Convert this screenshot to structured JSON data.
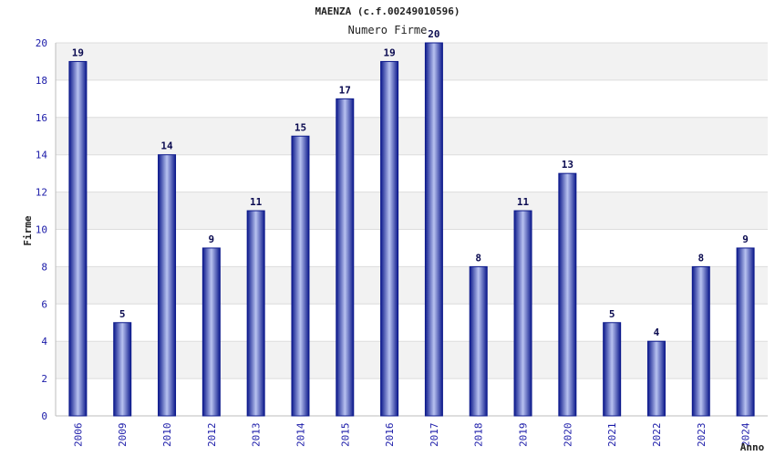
{
  "chart_data": {
    "type": "bar",
    "title": "MAENZA (c.f.00249010596)",
    "subtitle": "Numero Firme",
    "xlabel": "Anno",
    "ylabel": "Firme",
    "categories": [
      "2006",
      "2009",
      "2010",
      "2012",
      "2013",
      "2014",
      "2015",
      "2016",
      "2017",
      "2018",
      "2019",
      "2020",
      "2021",
      "2022",
      "2023",
      "2024"
    ],
    "values": [
      19,
      5,
      14,
      9,
      11,
      15,
      17,
      19,
      20,
      8,
      11,
      13,
      5,
      4,
      8,
      9
    ],
    "ylim": [
      0,
      20
    ],
    "yticks": [
      "0",
      "2",
      "4",
      "6",
      "8",
      "10",
      "12",
      "14",
      "16",
      "18",
      "20"
    ],
    "grid": true,
    "colors": {
      "bar_dark": "#0d1a8c",
      "bar_light": "#b8c2f0",
      "tick": "#1a1aa8",
      "band": "#f2f2f2"
    }
  }
}
